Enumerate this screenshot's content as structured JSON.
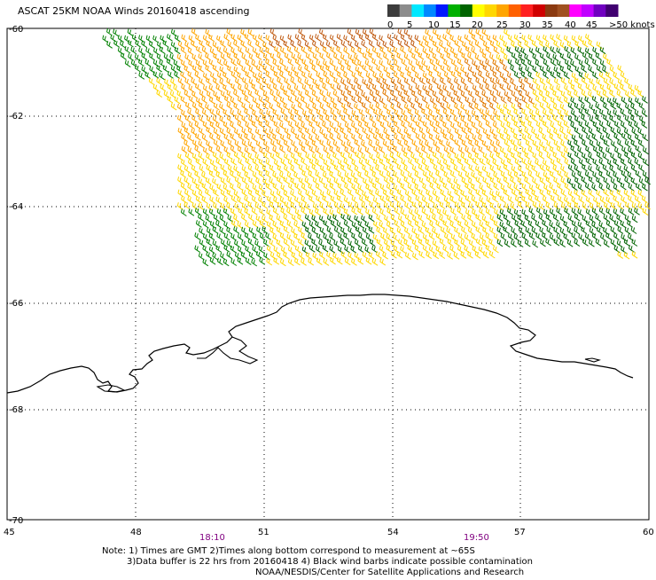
{
  "title": "ASCAT 25KM NOAA Winds 20160418 ascending",
  "colorbar": {
    "colors": [
      "#3c3c3c",
      "#8c8c8c",
      "#00e8ff",
      "#0088ff",
      "#0018ff",
      "#00b000",
      "#006400",
      "#ffff00",
      "#ffd700",
      "#ffa500",
      "#ff6000",
      "#ff2020",
      "#d00000",
      "#8b3a10",
      "#a05020",
      "#ff00ff",
      "#c000ff",
      "#7000c0",
      "#400070"
    ],
    "labels": [
      "0",
      "5",
      "10",
      "15",
      "20",
      "25",
      "30",
      "35",
      "40",
      "45",
      ">50 knots"
    ]
  },
  "axes": {
    "y_labels": [
      "-60",
      "-62",
      "-64",
      "-66",
      "-68",
      "-70"
    ],
    "x_labels": [
      "45",
      "48",
      "51",
      "54",
      "57",
      "60"
    ]
  },
  "time_labels": [
    "18:10",
    "19:50"
  ],
  "notes": [
    "Note: 1) Times are GMT 2)Times along bottom correspond to measurement at ~65S",
    "3)Data buffer is 22 hrs from 20160418 4) Black wind barbs indicate possible contamination",
    "NOAA/NESDIS/Center for Satellite Applications and Research"
  ],
  "legend_colors": {
    "green": "#008000",
    "dark_green": "#006400",
    "yellow": "#ffd700",
    "orange": "#ffa500",
    "dark_orange": "#e07800",
    "brown": "#c05a10",
    "time_label": "#800080"
  }
}
